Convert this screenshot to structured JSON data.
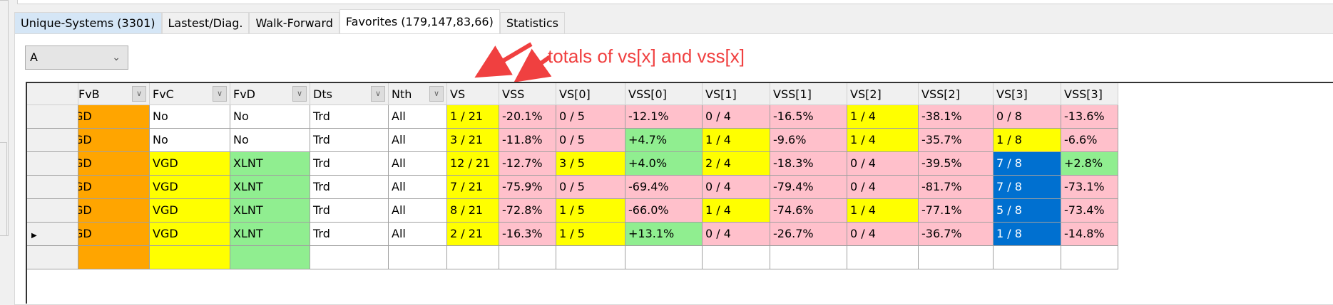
{
  "tabs": [
    {
      "label": "Unique-Systems (3301)"
    },
    {
      "label": "Lastest/Diag."
    },
    {
      "label": "Walk-Forward"
    },
    {
      "label": "Favorites (179,147,83,66)"
    },
    {
      "label": "Statistics"
    }
  ],
  "selector": {
    "value": "A"
  },
  "annotation": "totals of vs[x] and vss[x]",
  "columns": [
    {
      "label": "FvB",
      "filter": true
    },
    {
      "label": "FvC",
      "filter": true
    },
    {
      "label": "FvD",
      "filter": true
    },
    {
      "label": "Dts",
      "filter": true
    },
    {
      "label": "Nth",
      "filter": true
    },
    {
      "label": "VS"
    },
    {
      "label": "VSS"
    },
    {
      "label": "VS[0]"
    },
    {
      "label": "VSS[0]"
    },
    {
      "label": "VS[1]"
    },
    {
      "label": "VSS[1]"
    },
    {
      "label": "VS[2]"
    },
    {
      "label": "VSS[2]"
    },
    {
      "label": "VS[3]"
    },
    {
      "label": "VSS[3]"
    }
  ],
  "colors": {
    "orange": "#FFA500",
    "yellow": "#FFFF00",
    "green": "#90EE90",
    "pink": "#FFC0CB",
    "blue": "#0070D0"
  },
  "rows": [
    {
      "current": false,
      "cells": [
        [
          "GD",
          "orange"
        ],
        [
          "No",
          "white"
        ],
        [
          "No",
          "white"
        ],
        [
          "Trd",
          "white"
        ],
        [
          "All",
          "white"
        ],
        [
          "1 / 21",
          "yellow"
        ],
        [
          "-20.1%",
          "pink"
        ],
        [
          "0 / 5",
          "pink"
        ],
        [
          "-12.1%",
          "pink"
        ],
        [
          "0 / 4",
          "pink"
        ],
        [
          "-16.5%",
          "pink"
        ],
        [
          "1 / 4",
          "yellow"
        ],
        [
          "-38.1%",
          "pink"
        ],
        [
          "0 / 8",
          "pink"
        ],
        [
          "-13.6%",
          "pink"
        ]
      ]
    },
    {
      "current": false,
      "cells": [
        [
          "GD",
          "orange"
        ],
        [
          "No",
          "white"
        ],
        [
          "No",
          "white"
        ],
        [
          "Trd",
          "white"
        ],
        [
          "All",
          "white"
        ],
        [
          "3 / 21",
          "yellow"
        ],
        [
          "-11.8%",
          "pink"
        ],
        [
          "0 / 5",
          "pink"
        ],
        [
          "+4.7%",
          "green"
        ],
        [
          "1 / 4",
          "yellow"
        ],
        [
          "-9.6%",
          "pink"
        ],
        [
          "1 / 4",
          "yellow"
        ],
        [
          "-35.7%",
          "pink"
        ],
        [
          "1 / 8",
          "yellow"
        ],
        [
          "-6.6%",
          "pink"
        ]
      ]
    },
    {
      "current": false,
      "cells": [
        [
          "GD",
          "orange"
        ],
        [
          "VGD",
          "yellow"
        ],
        [
          "XLNT",
          "green"
        ],
        [
          "Trd",
          "white"
        ],
        [
          "All",
          "white"
        ],
        [
          "12 / 21",
          "yellow"
        ],
        [
          "-12.7%",
          "pink"
        ],
        [
          "3 / 5",
          "yellow"
        ],
        [
          "+4.0%",
          "green"
        ],
        [
          "2 / 4",
          "yellow"
        ],
        [
          "-18.3%",
          "pink"
        ],
        [
          "0 / 4",
          "pink"
        ],
        [
          "-39.5%",
          "pink"
        ],
        [
          "7 / 8",
          "blue"
        ],
        [
          "+2.8%",
          "green"
        ]
      ]
    },
    {
      "current": false,
      "cells": [
        [
          "GD",
          "orange"
        ],
        [
          "VGD",
          "yellow"
        ],
        [
          "XLNT",
          "green"
        ],
        [
          "Trd",
          "white"
        ],
        [
          "All",
          "white"
        ],
        [
          "7 / 21",
          "yellow"
        ],
        [
          "-75.9%",
          "pink"
        ],
        [
          "0 / 5",
          "pink"
        ],
        [
          "-69.4%",
          "pink"
        ],
        [
          "0 / 4",
          "pink"
        ],
        [
          "-79.4%",
          "pink"
        ],
        [
          "0 / 4",
          "pink"
        ],
        [
          "-81.7%",
          "pink"
        ],
        [
          "7 / 8",
          "blue"
        ],
        [
          "-73.1%",
          "pink"
        ]
      ]
    },
    {
      "current": false,
      "cells": [
        [
          "GD",
          "orange"
        ],
        [
          "VGD",
          "yellow"
        ],
        [
          "XLNT",
          "green"
        ],
        [
          "Trd",
          "white"
        ],
        [
          "All",
          "white"
        ],
        [
          "8 / 21",
          "yellow"
        ],
        [
          "-72.8%",
          "pink"
        ],
        [
          "1 / 5",
          "yellow"
        ],
        [
          "-66.0%",
          "pink"
        ],
        [
          "1 / 4",
          "yellow"
        ],
        [
          "-74.6%",
          "pink"
        ],
        [
          "1 / 4",
          "yellow"
        ],
        [
          "-77.1%",
          "pink"
        ],
        [
          "5 / 8",
          "blue"
        ],
        [
          "-73.4%",
          "pink"
        ]
      ]
    },
    {
      "current": true,
      "cells": [
        [
          "GD",
          "orange"
        ],
        [
          "VGD",
          "yellow"
        ],
        [
          "XLNT",
          "green"
        ],
        [
          "Trd",
          "white"
        ],
        [
          "All",
          "white"
        ],
        [
          "2 / 21",
          "yellow"
        ],
        [
          "-16.3%",
          "pink"
        ],
        [
          "1 / 5",
          "yellow"
        ],
        [
          "+13.1%",
          "green"
        ],
        [
          "0 / 4",
          "pink"
        ],
        [
          "-26.7%",
          "pink"
        ],
        [
          "0 / 4",
          "pink"
        ],
        [
          "-36.7%",
          "pink"
        ],
        [
          "1 / 8",
          "blue"
        ],
        [
          "-14.8%",
          "pink"
        ]
      ]
    },
    {
      "current": false,
      "cells": [
        [
          "",
          "orange"
        ],
        [
          "",
          "yellow"
        ],
        [
          "",
          "green"
        ],
        [
          "",
          "white"
        ],
        [
          "",
          "white"
        ],
        [
          "",
          "white"
        ],
        [
          "",
          "white"
        ],
        [
          "",
          "white"
        ],
        [
          "",
          "white"
        ],
        [
          "",
          "white"
        ],
        [
          "",
          "white"
        ],
        [
          "",
          "white"
        ],
        [
          "",
          "white"
        ],
        [
          "",
          "white"
        ],
        [
          "",
          "white"
        ]
      ]
    }
  ]
}
